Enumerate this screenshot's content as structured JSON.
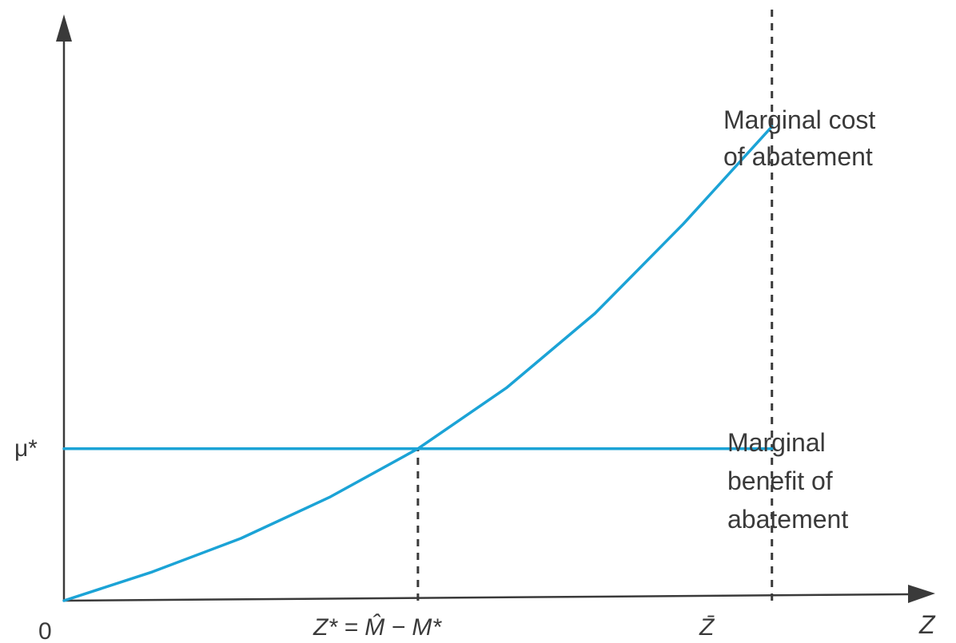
{
  "chart_data": {
    "type": "line",
    "title": "",
    "origin_label": "0",
    "ylabel": "",
    "xlabel": "Z",
    "x_ticks": [
      {
        "x": 1.0,
        "label": "Z* = M̂ − M*"
      },
      {
        "x": 2.0,
        "label": "Z̄"
      }
    ],
    "y_ticks": [
      {
        "y": 1.0,
        "label": "μ*"
      }
    ],
    "series": [
      {
        "name": "Marginal cost of abatement",
        "x": [
          0,
          0.25,
          0.5,
          0.75,
          1.0,
          1.25,
          1.5,
          1.75,
          2.0
        ],
        "y": [
          0,
          0.19,
          0.41,
          0.68,
          1.0,
          1.4,
          1.89,
          2.48,
          3.12
        ]
      },
      {
        "name": "Marginal benefit of abatement",
        "x": [
          0,
          2.0
        ],
        "y": [
          1.0,
          1.0
        ]
      }
    ],
    "reference_lines": [
      {
        "axis": "x",
        "value": 1.0,
        "from_y": 0,
        "to_y": 1.0,
        "style": "dashed"
      },
      {
        "axis": "x",
        "value": 2.0,
        "from_y": 0,
        "to_y": 3.9,
        "style": "dashed"
      }
    ],
    "annotations": [
      {
        "text": [
          "Marginal cost",
          "of abatement"
        ],
        "series": 0
      },
      {
        "text": [
          "Marginal",
          "benefit of",
          "abatement"
        ],
        "series": 1
      }
    ],
    "xlim": [
      0,
      2.45
    ],
    "ylim": [
      0,
      3.9
    ],
    "grid": false,
    "colors": {
      "curve": "#1ba3d6",
      "axis": "#3a3a3a"
    }
  }
}
